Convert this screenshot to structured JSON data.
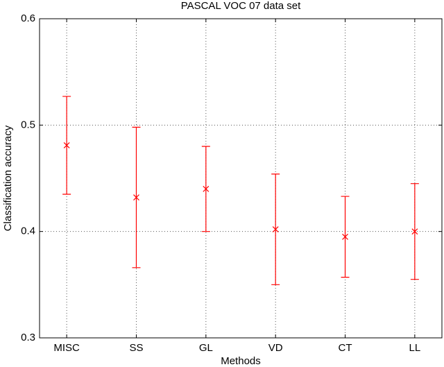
{
  "chart_data": {
    "type": "errorbar",
    "title": "PASCAL VOC 07 data set",
    "x_label": "Methods",
    "y_label": "Classification accuracy",
    "categories": [
      "MISC",
      "SS",
      "GL",
      "VD",
      "CT",
      "LL"
    ],
    "values": [
      0.481,
      0.432,
      0.44,
      0.402,
      0.395,
      0.4
    ],
    "errors": [
      0.046,
      0.066,
      0.04,
      0.052,
      0.038,
      0.045
    ],
    "color": "#ff0000",
    "ylim": [
      0.3,
      0.6
    ],
    "yticks": [
      0.3,
      0.4,
      0.5,
      0.6
    ],
    "grid": true
  }
}
